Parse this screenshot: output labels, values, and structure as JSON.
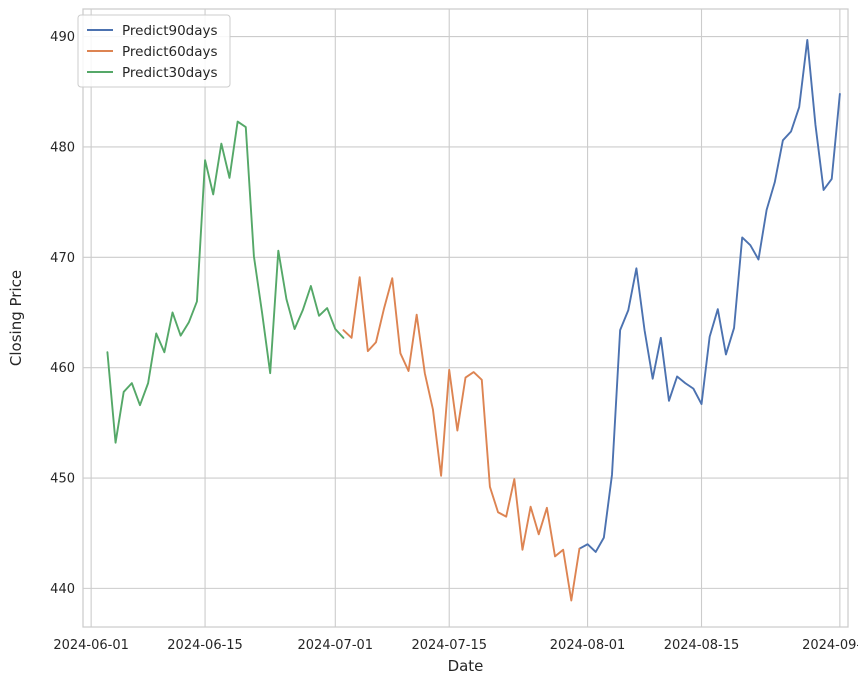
{
  "chart_data": {
    "type": "line",
    "title": "",
    "xlabel": "Date",
    "ylabel": "Closing Price",
    "xlim": [
      "2024-05-31",
      "2024-09-02"
    ],
    "ylim": [
      436.5,
      492.5
    ],
    "yticks": [
      440,
      450,
      460,
      470,
      480,
      490
    ],
    "xticks": [
      {
        "value": "2024-06-01",
        "label": "2024-06-01"
      },
      {
        "value": "2024-06-15",
        "label": "2024-06-15"
      },
      {
        "value": "2024-07-01",
        "label": "2024-07-01"
      },
      {
        "value": "2024-07-15",
        "label": "2024-07-15"
      },
      {
        "value": "2024-08-01",
        "label": "2024-08-01"
      },
      {
        "value": "2024-08-15",
        "label": "2024-08-15"
      },
      {
        "value": "2024-09-01",
        "label": "2024-09-01"
      }
    ],
    "grid": true,
    "legend_position": "top-left",
    "series": [
      {
        "name": "Predict90days",
        "color": "#4c72b0",
        "x": [
          "2024-07-31",
          "2024-08-01",
          "2024-08-02",
          "2024-08-03",
          "2024-08-04",
          "2024-08-05",
          "2024-08-06",
          "2024-08-07",
          "2024-08-08",
          "2024-08-09",
          "2024-08-10",
          "2024-08-11",
          "2024-08-12",
          "2024-08-13",
          "2024-08-14",
          "2024-08-15",
          "2024-08-16",
          "2024-08-17",
          "2024-08-18",
          "2024-08-19",
          "2024-08-20",
          "2024-08-21",
          "2024-08-22",
          "2024-08-23",
          "2024-08-24",
          "2024-08-25",
          "2024-08-26",
          "2024-08-27",
          "2024-08-28",
          "2024-08-29",
          "2024-08-30",
          "2024-08-31",
          "2024-09-01"
        ],
        "y": [
          443.6,
          444.0,
          443.3,
          444.6,
          450.3,
          463.4,
          465.2,
          469.0,
          463.4,
          459.0,
          462.7,
          457.0,
          459.2,
          458.6,
          458.1,
          456.7,
          462.8,
          465.3,
          461.2,
          463.6,
          471.8,
          471.1,
          469.8,
          474.3,
          476.8,
          480.6,
          481.4,
          483.6,
          489.7,
          482.0,
          476.1,
          477.1,
          484.8
        ]
      },
      {
        "name": "Predict60days",
        "color": "#dd8452",
        "x": [
          "2024-07-02",
          "2024-07-03",
          "2024-07-04",
          "2024-07-05",
          "2024-07-06",
          "2024-07-07",
          "2024-07-08",
          "2024-07-09",
          "2024-07-10",
          "2024-07-11",
          "2024-07-12",
          "2024-07-13",
          "2024-07-14",
          "2024-07-15",
          "2024-07-16",
          "2024-07-17",
          "2024-07-18",
          "2024-07-19",
          "2024-07-20",
          "2024-07-21",
          "2024-07-22",
          "2024-07-23",
          "2024-07-24",
          "2024-07-25",
          "2024-07-26",
          "2024-07-27",
          "2024-07-28",
          "2024-07-29",
          "2024-07-30",
          "2024-07-31"
        ],
        "y": [
          463.4,
          462.7,
          468.2,
          461.5,
          462.3,
          465.4,
          468.1,
          461.3,
          459.7,
          464.8,
          459.5,
          456.2,
          450.2,
          459.8,
          454.3,
          459.1,
          459.6,
          458.9,
          449.2,
          446.9,
          446.5,
          449.9,
          443.5,
          447.4,
          444.9,
          447.3,
          442.9,
          443.5,
          438.9,
          443.6
        ]
      },
      {
        "name": "Predict30days",
        "color": "#55a868",
        "x": [
          "2024-06-03",
          "2024-06-04",
          "2024-06-05",
          "2024-06-06",
          "2024-06-07",
          "2024-06-08",
          "2024-06-09",
          "2024-06-10",
          "2024-06-11",
          "2024-06-12",
          "2024-06-13",
          "2024-06-14",
          "2024-06-15",
          "2024-06-16",
          "2024-06-17",
          "2024-06-18",
          "2024-06-19",
          "2024-06-20",
          "2024-06-21",
          "2024-06-22",
          "2024-06-23",
          "2024-06-24",
          "2024-06-25",
          "2024-06-26",
          "2024-06-27",
          "2024-06-28",
          "2024-06-29",
          "2024-06-30",
          "2024-07-01",
          "2024-07-02"
        ],
        "y": [
          461.4,
          453.2,
          457.8,
          458.6,
          456.6,
          458.6,
          463.1,
          461.4,
          465.0,
          462.9,
          464.1,
          466.0,
          478.8,
          475.7,
          480.3,
          477.2,
          482.3,
          481.8,
          470.1,
          465.0,
          459.5,
          470.6,
          466.2,
          463.5,
          465.2,
          467.4,
          464.7,
          465.4,
          463.5,
          462.7
        ]
      }
    ]
  }
}
